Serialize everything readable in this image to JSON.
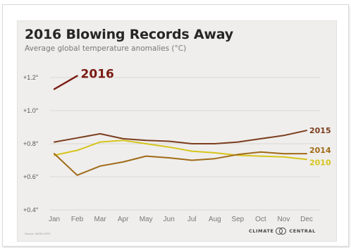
{
  "chart_data": {
    "type": "line",
    "title": "2016 Blowing Records Away",
    "subtitle": "Average global temperature anomalies (°C)",
    "xlabel": "",
    "ylabel": "",
    "categories": [
      "Jan",
      "Feb",
      "Mar",
      "Apr",
      "May",
      "Jun",
      "Jul",
      "Aug",
      "Sep",
      "Oct",
      "Nov",
      "Dec"
    ],
    "ylim": [
      0.4,
      1.3
    ],
    "y_ticks": [
      0.4,
      0.6,
      0.8,
      1.0,
      1.2
    ],
    "y_tick_labels": [
      "+0.4°",
      "+0.6°",
      "+0.8°",
      "+1.0°",
      "+1.2°"
    ],
    "grid": true,
    "legend": "direct labels at line ends",
    "series": [
      {
        "name": "2016",
        "color": "#7a1a12",
        "values": [
          1.13,
          1.21,
          null,
          null,
          null,
          null,
          null,
          null,
          null,
          null,
          null,
          null
        ]
      },
      {
        "name": "2015",
        "color": "#7b3d1e",
        "values": [
          0.81,
          0.835,
          0.86,
          0.83,
          0.82,
          0.815,
          0.8,
          0.8,
          0.81,
          0.83,
          0.85,
          0.88
        ]
      },
      {
        "name": "2014",
        "color": "#a06a18",
        "values": [
          0.74,
          0.61,
          0.665,
          0.69,
          0.725,
          0.715,
          0.7,
          0.71,
          0.735,
          0.75,
          0.74,
          0.74
        ]
      },
      {
        "name": "2010",
        "color": "#d6c41c",
        "values": [
          0.73,
          0.76,
          0.81,
          0.82,
          0.8,
          0.78,
          0.755,
          0.745,
          0.73,
          0.725,
          0.72,
          0.705
        ]
      }
    ]
  },
  "footer": {
    "source": "Source: NASA GISS",
    "brand_left": "CLIMATE",
    "brand_right": "CENTRAL"
  }
}
